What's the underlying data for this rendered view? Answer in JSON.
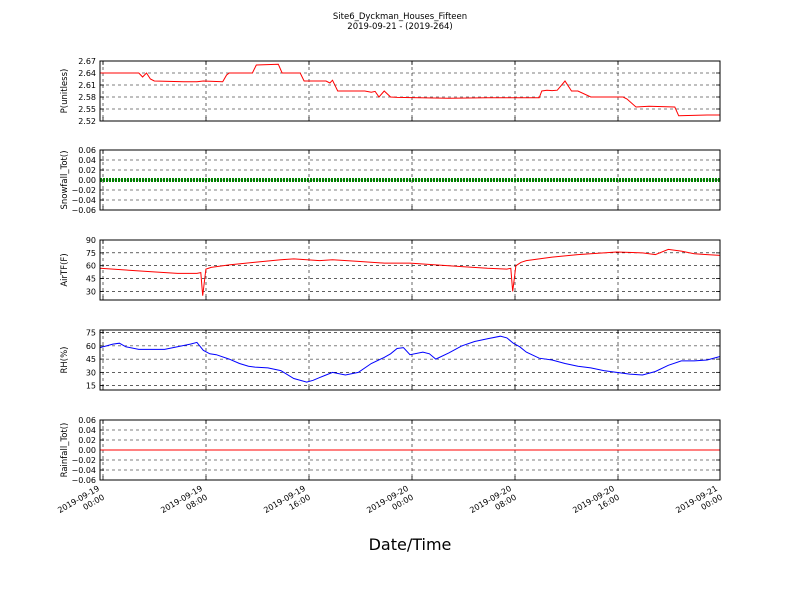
{
  "figure": {
    "title_line1": "Site6_Dyckman_Houses_Fifteen",
    "title_line2": "2019-09-21 - (2019-264)",
    "xlabel": "Date/Time",
    "x_tick_labels": [
      [
        "2019-09-19",
        "00:00"
      ],
      [
        "2019-09-19",
        "08:00"
      ],
      [
        "2019-09-19",
        "16:00"
      ],
      [
        "2019-09-20",
        "00:00"
      ],
      [
        "2019-09-20",
        "08:00"
      ],
      [
        "2019-09-20",
        "16:00"
      ],
      [
        "2019-09-21",
        "00:00"
      ]
    ]
  },
  "chart_data": [
    {
      "type": "line",
      "ylabel": "P(unitless)",
      "color": "#ff0000",
      "ylim": [
        2.52,
        2.67
      ],
      "yticks": [
        "2.67",
        "2.64",
        "2.61",
        "2.58",
        "2.55",
        "2.52"
      ],
      "ytick_values": [
        2.67,
        2.64,
        2.61,
        2.58,
        2.55,
        2.52
      ],
      "xlim_hours": [
        0,
        48
      ],
      "grid": true,
      "series": [
        {
          "x": [
            0,
            3.0,
            3.3,
            3.6,
            3.9,
            4.2,
            6.5,
            7.5,
            8.0,
            9.5,
            9.8,
            10.0,
            11.8,
            12.1,
            13.8,
            14.1,
            15.5,
            15.8,
            17.5,
            17.8,
            18.0,
            18.4,
            20.5,
            21.0,
            21.3,
            21.6,
            22.0,
            22.5,
            23.0,
            27.0,
            30.0,
            31.0,
            34.0,
            34.2,
            34.6,
            35.0,
            35.4,
            36.0,
            36.5,
            37.0,
            38.0,
            40.5,
            40.8,
            41.5,
            42.5,
            44.5,
            44.8,
            47.0,
            48.0
          ],
          "y": [
            2.64,
            2.64,
            2.63,
            2.64,
            2.625,
            2.62,
            2.618,
            2.618,
            2.62,
            2.618,
            2.635,
            2.64,
            2.64,
            2.66,
            2.662,
            2.64,
            2.64,
            2.62,
            2.62,
            2.615,
            2.622,
            2.595,
            2.595,
            2.592,
            2.594,
            2.58,
            2.595,
            2.58,
            2.579,
            2.577,
            2.578,
            2.578,
            2.578,
            2.595,
            2.597,
            2.596,
            2.597,
            2.62,
            2.595,
            2.595,
            2.58,
            2.58,
            2.575,
            2.555,
            2.557,
            2.555,
            2.533,
            2.535,
            2.535
          ]
        }
      ]
    },
    {
      "type": "line",
      "ylabel": "Snowfall_Tot()",
      "color": "#008000",
      "ylim": [
        -0.06,
        0.06
      ],
      "yticks": [
        "0.06",
        "0.04",
        "0.02",
        "0.00",
        "−0.02",
        "−0.04",
        "−0.06"
      ],
      "ytick_values": [
        0.06,
        0.04,
        0.02,
        0.0,
        -0.02,
        -0.04,
        -0.06
      ],
      "xlim_hours": [
        0,
        48
      ],
      "grid": true,
      "series": [
        {
          "x": [
            0,
            48
          ],
          "y": [
            0,
            0
          ]
        }
      ]
    },
    {
      "type": "line",
      "ylabel": "AirTF(F)",
      "color": "#ff0000",
      "ylim": [
        20,
        90
      ],
      "yticks": [
        "90",
        "75",
        "60",
        "45",
        "30"
      ],
      "ytick_values": [
        90,
        75,
        60,
        45,
        30
      ],
      "xlim_hours": [
        0,
        48
      ],
      "grid": true,
      "series": [
        {
          "x": [
            0,
            2,
            4,
            6,
            7.5,
            7.8,
            7.95,
            8.2,
            8.6,
            10,
            12,
            14,
            15,
            16,
            17,
            18,
            20,
            22,
            24,
            26,
            28,
            30,
            31.5,
            31.8,
            31.95,
            32.2,
            32.6,
            33,
            35,
            37,
            39,
            40,
            42,
            43,
            44,
            45,
            46,
            47,
            48
          ],
          "y": [
            57,
            55,
            53,
            51,
            51,
            52,
            25,
            56,
            58,
            61,
            64,
            67,
            68,
            67,
            66,
            67,
            65,
            63,
            63,
            61,
            59,
            57,
            56,
            57,
            30,
            60,
            64,
            66,
            70,
            73,
            75,
            76,
            75,
            73,
            79,
            77,
            74,
            73,
            72
          ]
        }
      ]
    },
    {
      "type": "line",
      "ylabel": "RH(%)",
      "color": "#0000ff",
      "ylim": [
        10,
        78
      ],
      "yticks": [
        "75",
        "60",
        "45",
        "30",
        "15"
      ],
      "ytick_values": [
        75,
        60,
        45,
        30,
        15
      ],
      "xlim_hours": [
        0,
        48
      ],
      "grid": true,
      "series": [
        {
          "x": [
            0,
            1,
            1.5,
            2,
            3,
            4,
            5,
            6,
            7,
            7.5,
            8,
            8.5,
            9,
            10,
            10.8,
            11.5,
            12,
            13,
            14,
            15,
            16,
            16.5,
            17,
            17.5,
            18,
            19,
            20,
            21,
            22,
            22.5,
            23,
            23.5,
            24,
            25,
            25.5,
            26,
            27,
            28,
            29,
            30,
            31,
            31.5,
            32,
            32.5,
            33,
            34,
            35,
            36,
            37,
            38,
            39,
            40,
            41,
            42,
            43,
            44,
            45,
            46,
            47,
            48
          ],
          "y": [
            58,
            62,
            63,
            59,
            56,
            56,
            56,
            59,
            62,
            64,
            55,
            51,
            50,
            45,
            40,
            37,
            36,
            35,
            32,
            23,
            19,
            21,
            24,
            27,
            30,
            27,
            30,
            40,
            47,
            51,
            57,
            58,
            50,
            53,
            51,
            45,
            52,
            60,
            65,
            68,
            71,
            69,
            63,
            59,
            53,
            46,
            44,
            40,
            37,
            35,
            32,
            30,
            28,
            27,
            31,
            38,
            43,
            43,
            44,
            48
          ]
        }
      ]
    },
    {
      "type": "line",
      "ylabel": "Rainfall_Tot()",
      "color": "#ff0000",
      "ylim": [
        -0.06,
        0.06
      ],
      "yticks": [
        "0.06",
        "0.04",
        "0.02",
        "0.00",
        "−0.02",
        "−0.04",
        "−0.06"
      ],
      "ytick_values": [
        0.06,
        0.04,
        0.02,
        0.0,
        -0.02,
        -0.04,
        -0.06
      ],
      "xlim_hours": [
        0,
        48
      ],
      "grid": true,
      "series": [
        {
          "x": [
            0,
            48
          ],
          "y": [
            0,
            0
          ]
        }
      ]
    }
  ]
}
